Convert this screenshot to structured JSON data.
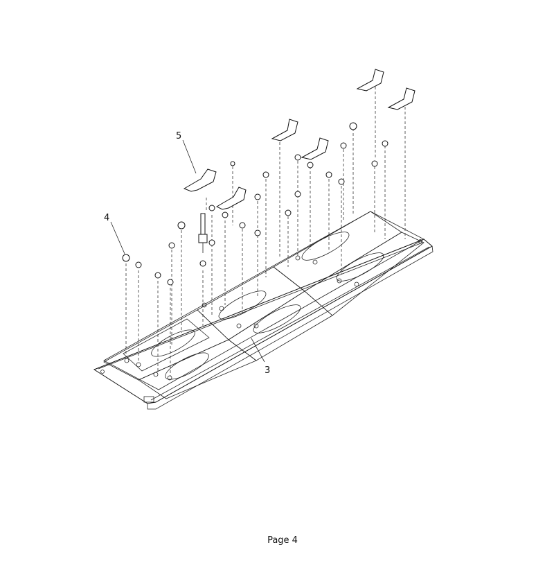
{
  "drawing": {
    "callouts": [
      {
        "id": "4",
        "label": "4"
      },
      {
        "id": "5",
        "label": "5"
      },
      {
        "id": "3",
        "label": "3"
      }
    ]
  },
  "footer": {
    "page_label": "Page 4"
  }
}
